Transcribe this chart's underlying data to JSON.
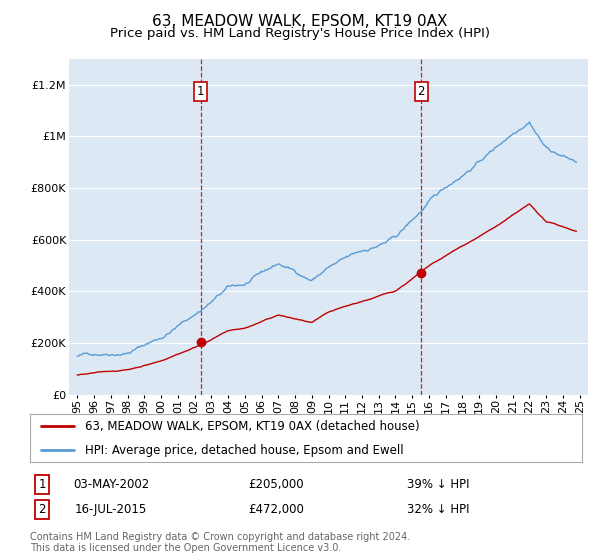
{
  "title": "63, MEADOW WALK, EPSOM, KT19 0AX",
  "subtitle": "Price paid vs. HM Land Registry's House Price Index (HPI)",
  "ylabel_ticks": [
    "£0",
    "£200K",
    "£400K",
    "£600K",
    "£800K",
    "£1M",
    "£1.2M"
  ],
  "ytick_values": [
    0,
    200000,
    400000,
    600000,
    800000,
    1000000,
    1200000
  ],
  "ylim": [
    0,
    1300000
  ],
  "xlim_start": 1994.5,
  "xlim_end": 2025.5,
  "background_color": "#dce9f5",
  "plot_bg_color": "#dce9f5",
  "hpi_color": "#5b9bd5",
  "price_color": "#c00000",
  "vline_color": "#c00000",
  "sale1_date": 2002.37,
  "sale1_price": 205000,
  "sale2_date": 2015.54,
  "sale2_price": 472000,
  "legend_label1": "63, MEADOW WALK, EPSOM, KT19 0AX (detached house)",
  "legend_label2": "HPI: Average price, detached house, Epsom and Ewell",
  "table_row1": [
    "1",
    "03-MAY-2002",
    "£205,000",
    "39% ↓ HPI"
  ],
  "table_row2": [
    "2",
    "16-JUL-2015",
    "£472,000",
    "32% ↓ HPI"
  ],
  "footnote": "Contains HM Land Registry data © Crown copyright and database right 2024.\nThis data is licensed under the Open Government Licence v3.0.",
  "title_fontsize": 11,
  "subtitle_fontsize": 9.5,
  "tick_fontsize": 8,
  "legend_fontsize": 8.5
}
